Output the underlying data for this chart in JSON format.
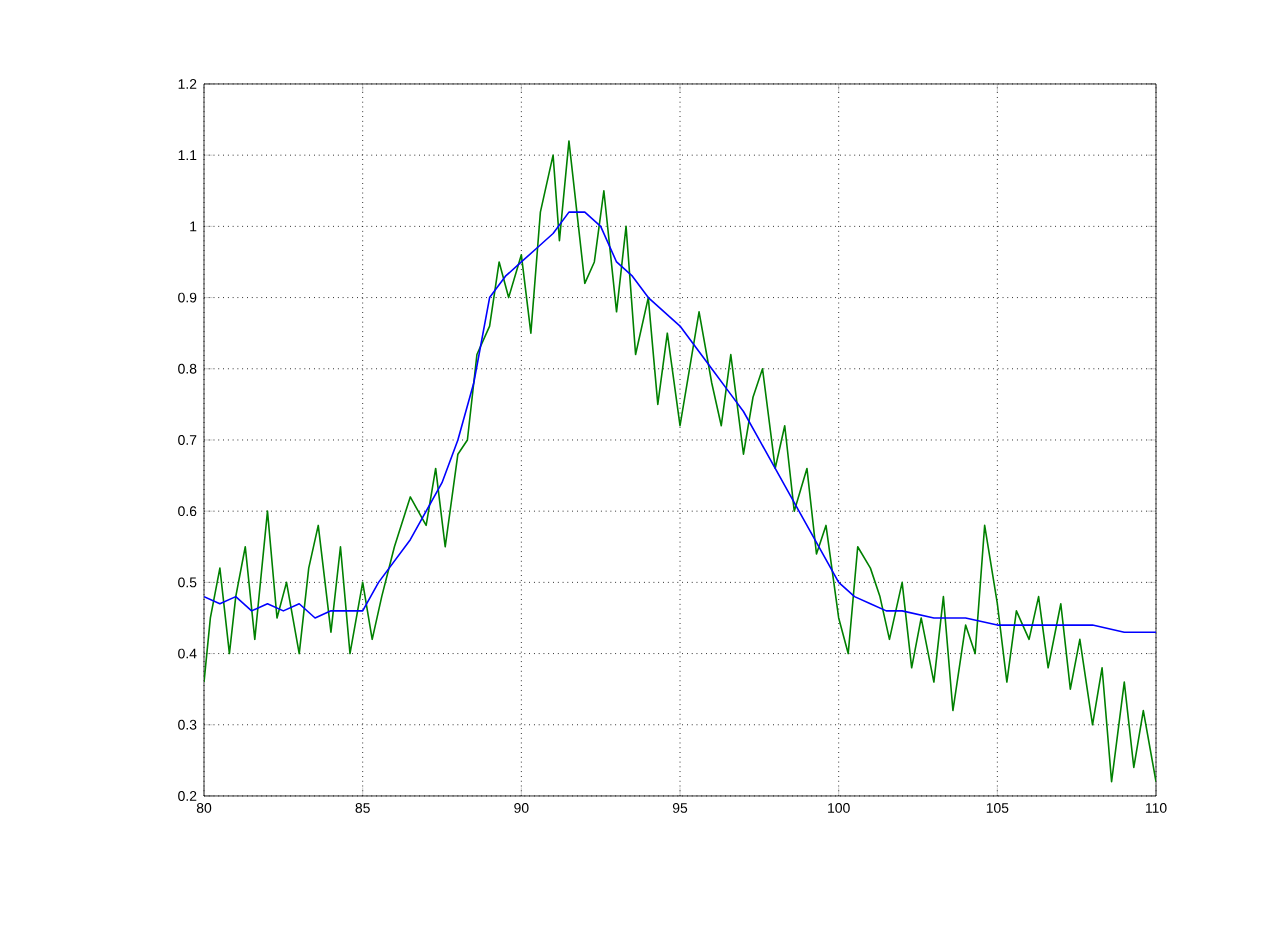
{
  "chart_data": {
    "type": "line",
    "xlim": [
      80,
      110
    ],
    "ylim": [
      0.2,
      1.2
    ],
    "xticks": [
      80,
      85,
      90,
      95,
      100,
      105,
      110
    ],
    "yticks": [
      0.2,
      0.3,
      0.4,
      0.5,
      0.6,
      0.7,
      0.8,
      0.9,
      1,
      1.1,
      1.2
    ],
    "grid": true,
    "marker": "none",
    "line_style": "solid",
    "series": [
      {
        "color": "#008000",
        "x": [
          80,
          80.2,
          80.5,
          80.8,
          81,
          81.3,
          81.6,
          82,
          82.3,
          82.6,
          83,
          83.3,
          83.6,
          84,
          84.3,
          84.6,
          85,
          85.3,
          85.6,
          86,
          86.5,
          87,
          87.3,
          87.6,
          88,
          88.3,
          88.6,
          89,
          89.3,
          89.6,
          90,
          90.3,
          90.6,
          91,
          91.2,
          91.5,
          91.8,
          92,
          92.3,
          92.6,
          93,
          93.3,
          93.6,
          94,
          94.3,
          94.6,
          95,
          95.3,
          95.6,
          96,
          96.3,
          96.6,
          97,
          97.3,
          97.6,
          98,
          98.3,
          98.6,
          99,
          99.3,
          99.6,
          100,
          100.3,
          100.6,
          101,
          101.3,
          101.6,
          102,
          102.3,
          102.6,
          103,
          103.3,
          103.6,
          104,
          104.3,
          104.6,
          105,
          105.3,
          105.6,
          106,
          106.3,
          106.6,
          107,
          107.3,
          107.6,
          108,
          108.3,
          108.6,
          109,
          109.3,
          109.6,
          110
        ],
        "values": [
          0.36,
          0.45,
          0.52,
          0.4,
          0.48,
          0.55,
          0.42,
          0.6,
          0.45,
          0.5,
          0.4,
          0.52,
          0.58,
          0.43,
          0.55,
          0.4,
          0.5,
          0.42,
          0.48,
          0.55,
          0.62,
          0.58,
          0.66,
          0.55,
          0.68,
          0.7,
          0.82,
          0.86,
          0.95,
          0.9,
          0.96,
          0.85,
          1.02,
          1.1,
          0.98,
          1.12,
          1.0,
          0.92,
          0.95,
          1.05,
          0.88,
          1.0,
          0.82,
          0.9,
          0.75,
          0.85,
          0.72,
          0.8,
          0.88,
          0.78,
          0.72,
          0.82,
          0.68,
          0.76,
          0.8,
          0.66,
          0.72,
          0.6,
          0.66,
          0.54,
          0.58,
          0.45,
          0.4,
          0.55,
          0.52,
          0.48,
          0.42,
          0.5,
          0.38,
          0.45,
          0.36,
          0.48,
          0.32,
          0.44,
          0.4,
          0.58,
          0.47,
          0.36,
          0.46,
          0.42,
          0.48,
          0.38,
          0.47,
          0.35,
          0.42,
          0.3,
          0.38,
          0.22,
          0.36,
          0.24,
          0.32,
          0.22
        ]
      },
      {
        "color": "#0000ff",
        "x": [
          80,
          80.5,
          81,
          81.5,
          82,
          82.5,
          83,
          83.5,
          84,
          84.5,
          85,
          85.5,
          86,
          86.5,
          87,
          87.5,
          88,
          88.5,
          89,
          89.5,
          90,
          90.5,
          91,
          91.5,
          92,
          92.5,
          93,
          93.5,
          94,
          94.5,
          95,
          95.5,
          96,
          96.5,
          97,
          97.5,
          98,
          98.5,
          99,
          99.5,
          100,
          100.5,
          101,
          101.5,
          102,
          103,
          104,
          105,
          106,
          107,
          108,
          109,
          110
        ],
        "values": [
          0.48,
          0.47,
          0.48,
          0.46,
          0.47,
          0.46,
          0.47,
          0.45,
          0.46,
          0.46,
          0.46,
          0.5,
          0.53,
          0.56,
          0.6,
          0.64,
          0.7,
          0.78,
          0.9,
          0.93,
          0.95,
          0.97,
          0.99,
          1.02,
          1.02,
          1.0,
          0.95,
          0.93,
          0.9,
          0.88,
          0.86,
          0.83,
          0.8,
          0.77,
          0.74,
          0.7,
          0.66,
          0.62,
          0.58,
          0.54,
          0.5,
          0.48,
          0.47,
          0.46,
          0.46,
          0.45,
          0.45,
          0.44,
          0.44,
          0.44,
          0.44,
          0.43,
          0.43
        ]
      }
    ]
  }
}
